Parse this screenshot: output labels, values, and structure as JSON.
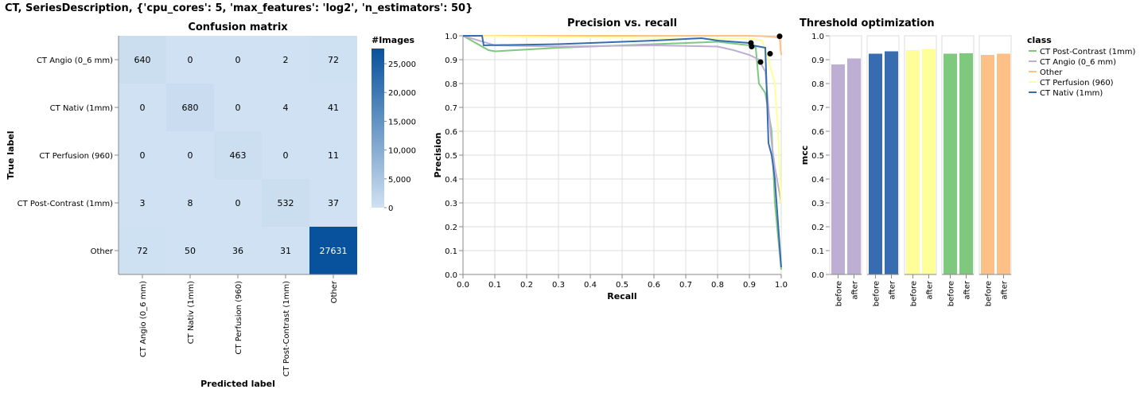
{
  "page_title": "CT, SeriesDescription, {'cpu_cores': 5, 'max_features': 'log2', 'n_estimators': 50}",
  "chart_data": [
    {
      "type": "heatmap",
      "title": "Confusion matrix",
      "xlabel": "Predicted label",
      "ylabel": "True label",
      "legend_title": "#Images",
      "legend_ticks": [
        "0",
        "5,000",
        "10,000",
        "15,000",
        "20,000",
        "25,000"
      ],
      "legend_max": 27631,
      "categories": [
        "CT Angio (0_6 mm)",
        "CT Nativ (1mm)",
        "CT Perfusion (960)",
        "CT Post-Contrast (1mm)",
        "Other"
      ],
      "values": [
        [
          640,
          0,
          0,
          2,
          72
        ],
        [
          0,
          680,
          0,
          4,
          41
        ],
        [
          0,
          0,
          463,
          0,
          11
        ],
        [
          3,
          8,
          0,
          532,
          37
        ],
        [
          72,
          50,
          36,
          31,
          27631
        ]
      ]
    },
    {
      "type": "line",
      "title": "Precision vs. recall",
      "xlabel": "Recall",
      "ylabel": "Precision",
      "xlim": [
        0,
        1
      ],
      "ylim": [
        0,
        1
      ],
      "grid": true,
      "x_ticks": [
        "0.0",
        "0.1",
        "0.2",
        "0.3",
        "0.4",
        "0.5",
        "0.6",
        "0.7",
        "0.8",
        "0.9",
        "1.0"
      ],
      "y_ticks": [
        "0.0",
        "0.1",
        "0.2",
        "0.3",
        "0.4",
        "0.5",
        "0.6",
        "0.7",
        "0.8",
        "0.9",
        "1.0"
      ],
      "series": [
        {
          "name": "CT Post-Contrast (1mm)",
          "color": "#7fc97f",
          "x": [
            0,
            0.08,
            0.1,
            0.3,
            0.6,
            0.8,
            0.9,
            0.92,
            0.93,
            0.95,
            0.97,
            0.98,
            1.0
          ],
          "y": [
            1.0,
            0.94,
            0.935,
            0.95,
            0.965,
            0.975,
            0.96,
            0.95,
            0.8,
            0.76,
            0.6,
            0.3,
            0.02
          ]
        },
        {
          "name": "CT Angio (0_6 mm)",
          "color": "#beaed4",
          "x": [
            0,
            0.1,
            0.3,
            0.6,
            0.8,
            0.85,
            0.9,
            0.93,
            0.95,
            0.96,
            0.97,
            0.98,
            1.0
          ],
          "y": [
            1.0,
            0.96,
            0.955,
            0.96,
            0.955,
            0.94,
            0.92,
            0.9,
            0.85,
            0.7,
            0.55,
            0.45,
            0.3
          ]
        },
        {
          "name": "Other",
          "color": "#fdc086",
          "x": [
            0,
            0.5,
            0.9,
            0.95,
            0.98,
            0.995,
            1.0
          ],
          "y": [
            1.0,
            1.0,
            1.0,
            0.998,
            0.995,
            0.99,
            0.92
          ]
        },
        {
          "name": "CT Perfusion (960)",
          "color": "#ffff99",
          "x": [
            0,
            0.3,
            0.7,
            0.9,
            0.94,
            0.96,
            0.98,
            0.99,
            1.0
          ],
          "y": [
            1.0,
            0.995,
            0.99,
            0.99,
            0.98,
            0.9,
            0.8,
            0.6,
            0.3
          ]
        },
        {
          "name": "CT Nativ (1mm)",
          "color": "#386cb0",
          "x": [
            0,
            0.06,
            0.065,
            0.3,
            0.6,
            0.75,
            0.8,
            0.9,
            0.91,
            0.95,
            0.96,
            0.97,
            0.98,
            1.0
          ],
          "y": [
            1.0,
            1.0,
            0.96,
            0.965,
            0.98,
            0.99,
            0.98,
            0.97,
            0.96,
            0.95,
            0.55,
            0.5,
            0.4,
            0.03
          ]
        }
      ],
      "points": [
        {
          "x": 0.905,
          "y": 0.97
        },
        {
          "x": 0.907,
          "y": 0.955
        },
        {
          "x": 0.935,
          "y": 0.89
        },
        {
          "x": 0.965,
          "y": 0.925
        },
        {
          "x": 0.995,
          "y": 0.998
        }
      ]
    },
    {
      "type": "bar",
      "title": "Threshold optimization",
      "ylabel": "mcc",
      "ylim": [
        0,
        1
      ],
      "y_ticks": [
        "0.0",
        "0.1",
        "0.2",
        "0.3",
        "0.4",
        "0.5",
        "0.6",
        "0.7",
        "0.8",
        "0.9",
        "1.0"
      ],
      "categories": [
        "before",
        "after"
      ],
      "legend_title": "class",
      "legend": [
        {
          "name": "CT Post-Contrast (1mm)",
          "color": "#7fc97f"
        },
        {
          "name": "CT Angio (0_6 mm)",
          "color": "#beaed4"
        },
        {
          "name": "Other",
          "color": "#fdc086"
        },
        {
          "name": "CT Perfusion (960)",
          "color": "#ffff99"
        },
        {
          "name": "CT Nativ (1mm)",
          "color": "#386cb0"
        }
      ],
      "facets": [
        {
          "class": "CT Angio (0_6 mm)",
          "color": "#beaed4",
          "values": [
            0.88,
            0.905
          ]
        },
        {
          "class": "CT Nativ (1mm)",
          "color": "#386cb0",
          "values": [
            0.925,
            0.935
          ]
        },
        {
          "class": "CT Perfusion (960)",
          "color": "#ffff99",
          "values": [
            0.94,
            0.945
          ]
        },
        {
          "class": "CT Post-Contrast (1mm)",
          "color": "#7fc97f",
          "values": [
            0.925,
            0.927
          ]
        },
        {
          "class": "Other",
          "color": "#fdc086",
          "values": [
            0.92,
            0.925
          ]
        }
      ]
    }
  ]
}
